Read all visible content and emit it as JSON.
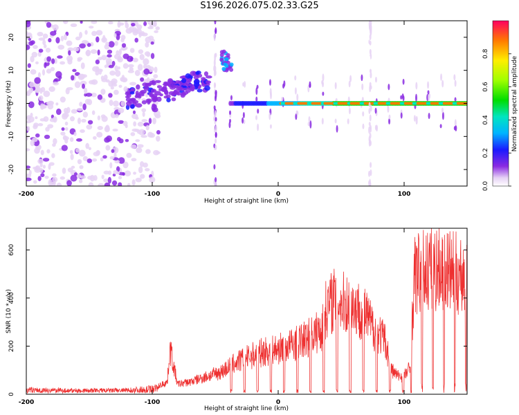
{
  "title": "S196.2026.075.02.33.G25",
  "chart_data": [
    {
      "type": "heatmap",
      "xlabel": "Height of straight line (km)",
      "ylabel": "Frequency (Hz)",
      "xlim": [
        -200,
        150
      ],
      "ylim": [
        -25,
        25
      ],
      "x_ticks": [
        -200,
        -100,
        0,
        100
      ],
      "x_tick_labels": [
        "-200",
        "-100",
        "0",
        "100"
      ],
      "y_ticks": [
        -20,
        -10,
        0,
        10,
        20
      ],
      "y_tick_labels": [
        "-20",
        "-10",
        "0",
        "10",
        "20"
      ],
      "colorbar": {
        "label": "Normalized spectral amplitude",
        "range": [
          0,
          1
        ],
        "ticks": [
          0.0,
          0.2,
          0.4,
          0.6,
          0.8
        ],
        "tick_labels": [
          "0.0",
          "0.2",
          "0.4",
          "0.6",
          "0.8"
        ],
        "colormap": "rainbow"
      },
      "features": [
        {
          "name": "diffuse noise",
          "x_range": [
            -200,
            -95
          ],
          "freq_range": [
            -25,
            25
          ],
          "amplitude": 0.05
        },
        {
          "name": "ascending streak",
          "x_range": [
            -120,
            -55
          ],
          "freq_range": [
            -4,
            10
          ],
          "amplitude": 0.25
        },
        {
          "name": "spike",
          "x": -50,
          "freq_range": [
            -25,
            25
          ],
          "amplitude": 0.12
        },
        {
          "name": "burst",
          "x_range": [
            -45,
            -37
          ],
          "freq_range": [
            10,
            16
          ],
          "amplitude": 0.35
        },
        {
          "name": "carrier line",
          "x_range": [
            -38,
            150
          ],
          "freq": 0,
          "amplitude": 0.95
        },
        {
          "name": "spike",
          "x": 73,
          "freq_range": [
            -25,
            25
          ],
          "amplitude": 0.08
        }
      ]
    },
    {
      "type": "line",
      "xlabel": "Height of straight line (km)",
      "ylabel": "SNR (10 * v/v)",
      "xlim": [
        -200,
        150
      ],
      "ylim": [
        0,
        690
      ],
      "x_ticks": [
        -200,
        -100,
        0,
        100
      ],
      "x_tick_labels": [
        "-200",
        "-100",
        "0",
        "100"
      ],
      "y_ticks": [
        0,
        200,
        400,
        600
      ],
      "y_tick_labels": [
        "0",
        "200",
        "400",
        "600"
      ],
      "series": [
        {
          "name": "SNR",
          "color": "#ee3030",
          "x": [
            -200,
            -180,
            -160,
            -140,
            -120,
            -105,
            -95,
            -88,
            -86,
            -80,
            -70,
            -60,
            -55,
            -45,
            -40,
            -35,
            -28,
            -20,
            -15,
            -10,
            -5,
            0,
            5,
            10,
            15,
            20,
            25,
            30,
            35,
            38,
            45,
            50,
            55,
            60,
            65,
            70,
            75,
            80,
            85,
            90,
            95,
            100,
            105,
            108,
            115,
            120,
            125,
            130,
            135,
            140,
            145,
            150
          ],
          "values": [
            25,
            22,
            20,
            20,
            22,
            30,
            40,
            60,
            230,
            50,
            60,
            80,
            90,
            110,
            130,
            150,
            170,
            190,
            200,
            210,
            215,
            220,
            230,
            240,
            250,
            265,
            280,
            300,
            320,
            420,
            470,
            450,
            440,
            430,
            410,
            380,
            330,
            300,
            260,
            120,
            90,
            90,
            130,
            580,
            600,
            610,
            615,
            620,
            600,
            590,
            585,
            590
          ]
        }
      ]
    }
  ]
}
